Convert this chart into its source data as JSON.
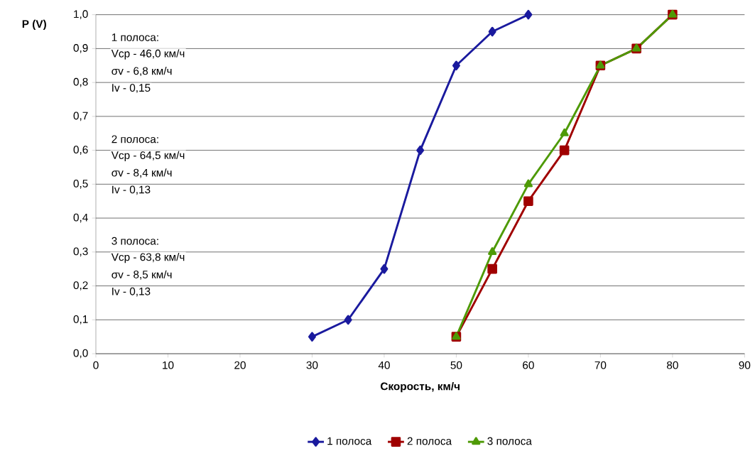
{
  "chart_data": {
    "type": "line",
    "xlabel": "Скорость, км/ч",
    "ylabel": "P (V)",
    "xlim": [
      0,
      90
    ],
    "xticks": [
      0,
      10,
      20,
      30,
      40,
      50,
      60,
      70,
      80,
      90
    ],
    "ylim": [
      0,
      1
    ],
    "yticks": [
      {
        "value": 0,
        "label": "0,0"
      },
      {
        "value": 0.1,
        "label": "0,1"
      },
      {
        "value": 0.2,
        "label": "0,2"
      },
      {
        "value": 0.3,
        "label": "0,3"
      },
      {
        "value": 0.4,
        "label": "0,4"
      },
      {
        "value": 0.5,
        "label": "0,5"
      },
      {
        "value": 0.6,
        "label": "0,6"
      },
      {
        "value": 0.7,
        "label": "0,7"
      },
      {
        "value": 0.8,
        "label": "0,8"
      },
      {
        "value": 0.9,
        "label": "0,9"
      },
      {
        "value": 1.0,
        "label": "1,0"
      }
    ],
    "grid": "y",
    "legend": "bottom",
    "line_style": "solid",
    "series": [
      {
        "name": "1 полоса",
        "color": "#1a1a9e",
        "marker": "diamond",
        "x": [
          30,
          35,
          40,
          45,
          50,
          55,
          60
        ],
        "values": [
          0.05,
          0.1,
          0.25,
          0.6,
          0.85,
          0.95,
          1.0
        ]
      },
      {
        "name": "2 полоса",
        "color": "#a00000",
        "marker": "square",
        "x": [
          50,
          55,
          60,
          65,
          70,
          75,
          80
        ],
        "values": [
          0.05,
          0.25,
          0.45,
          0.6,
          0.85,
          0.9,
          1.0
        ]
      },
      {
        "name": "3 полоса",
        "color": "#4e9a06",
        "marker": "triangle",
        "x": [
          50,
          55,
          60,
          65,
          70,
          75,
          80
        ],
        "values": [
          0.05,
          0.3,
          0.5,
          0.65,
          0.85,
          0.9,
          1.0
        ]
      }
    ],
    "annotations": [
      "1 полоса:",
      "Vср - 46,0 км/ч",
      "σv - 6,8 км/ч",
      "Iv - 0,15",
      "2 полоса:",
      "Vср - 64,5 км/ч",
      "σv - 8,4 км/ч",
      "Iv - 0,13",
      "3 полоса:",
      "Vср - 63,8 км/ч",
      "σv - 8,5 км/ч",
      "Iv - 0,13"
    ]
  }
}
